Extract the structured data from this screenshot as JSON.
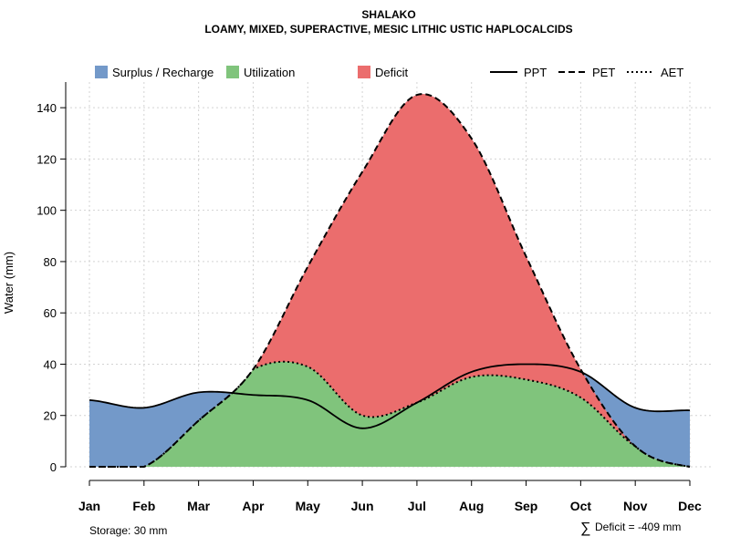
{
  "chart_data": {
    "type": "area",
    "title": "SHALAKO",
    "subtitle": "LOAMY, MIXED, SUPERACTIVE, MESIC LITHIC USTIC HAPLOCALCIDS",
    "ylabel": "Water (mm)",
    "xlabel": "",
    "ylim": [
      0,
      150
    ],
    "yticks": [
      0,
      20,
      40,
      60,
      80,
      100,
      120,
      140
    ],
    "categories": [
      "Jan",
      "Feb",
      "Mar",
      "Apr",
      "May",
      "Jun",
      "Jul",
      "Aug",
      "Sep",
      "Oct",
      "Nov",
      "Dec"
    ],
    "series": [
      {
        "name": "PPT",
        "line_style": "solid",
        "values": [
          26,
          23,
          29,
          28,
          26,
          15,
          25,
          37,
          40,
          37,
          23,
          22
        ]
      },
      {
        "name": "PET",
        "line_style": "dashed",
        "values": [
          0,
          0,
          18,
          38,
          78,
          115,
          145,
          128,
          82,
          38,
          8,
          0
        ]
      },
      {
        "name": "AET",
        "line_style": "dotted",
        "values": [
          0,
          0,
          18,
          38,
          39,
          20,
          25,
          35,
          34,
          27,
          8,
          0
        ]
      }
    ],
    "areas": [
      {
        "name": "Surplus / Recharge",
        "color": "#7399c9"
      },
      {
        "name": "Utilization",
        "color": "#80c47c"
      },
      {
        "name": "Deficit",
        "color": "#eb6d6d"
      }
    ],
    "legend": {
      "position": "top",
      "area_entries": [
        "Surplus / Recharge",
        "Utilization",
        "Deficit"
      ],
      "line_entries": [
        "PPT",
        "PET",
        "AET"
      ]
    },
    "grid": true
  },
  "footer": {
    "storage": "Storage: 30 mm",
    "deficit_symbol": "∑",
    "deficit": "Deficit = -409 mm"
  }
}
